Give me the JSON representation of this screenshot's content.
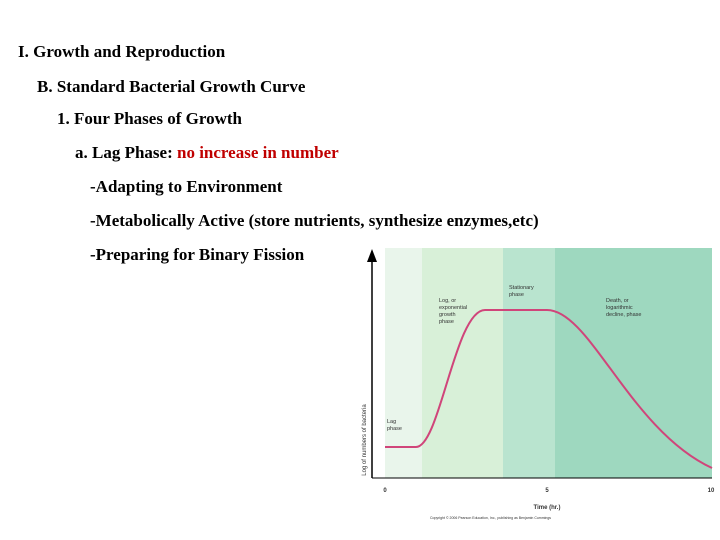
{
  "outline": [
    {
      "text": "I. Growth and Reproduction"
    },
    {
      "text": "B. Standard Bacterial Growth Curve"
    },
    {
      "text": "1. Four Phases of Growth"
    }
  ],
  "lag": {
    "label": "a. Lag Phase:",
    "highlight": "no increase in number"
  },
  "points": [
    "-Adapting to Environment",
    "-Metabolically Active (store nutrients, synthesize enzymes,etc)",
    "-Preparing for Binary Fission"
  ],
  "figure": {
    "phases": [
      [
        "Lag",
        "phase"
      ],
      [
        "Log, or",
        "exponential",
        "growth",
        "phase"
      ],
      [
        "Stationary",
        "phase"
      ],
      [
        "Death, or",
        "logarithmic",
        "decline, phase"
      ]
    ],
    "y_label": "Log of numbers of bacteria",
    "x_label": "Time (hr.)",
    "x_ticks": [
      "0",
      "5",
      "10"
    ],
    "copyright": "Copyright © 2006 Pearson Education, Inc., publishing as Benjamin Cummings"
  }
}
